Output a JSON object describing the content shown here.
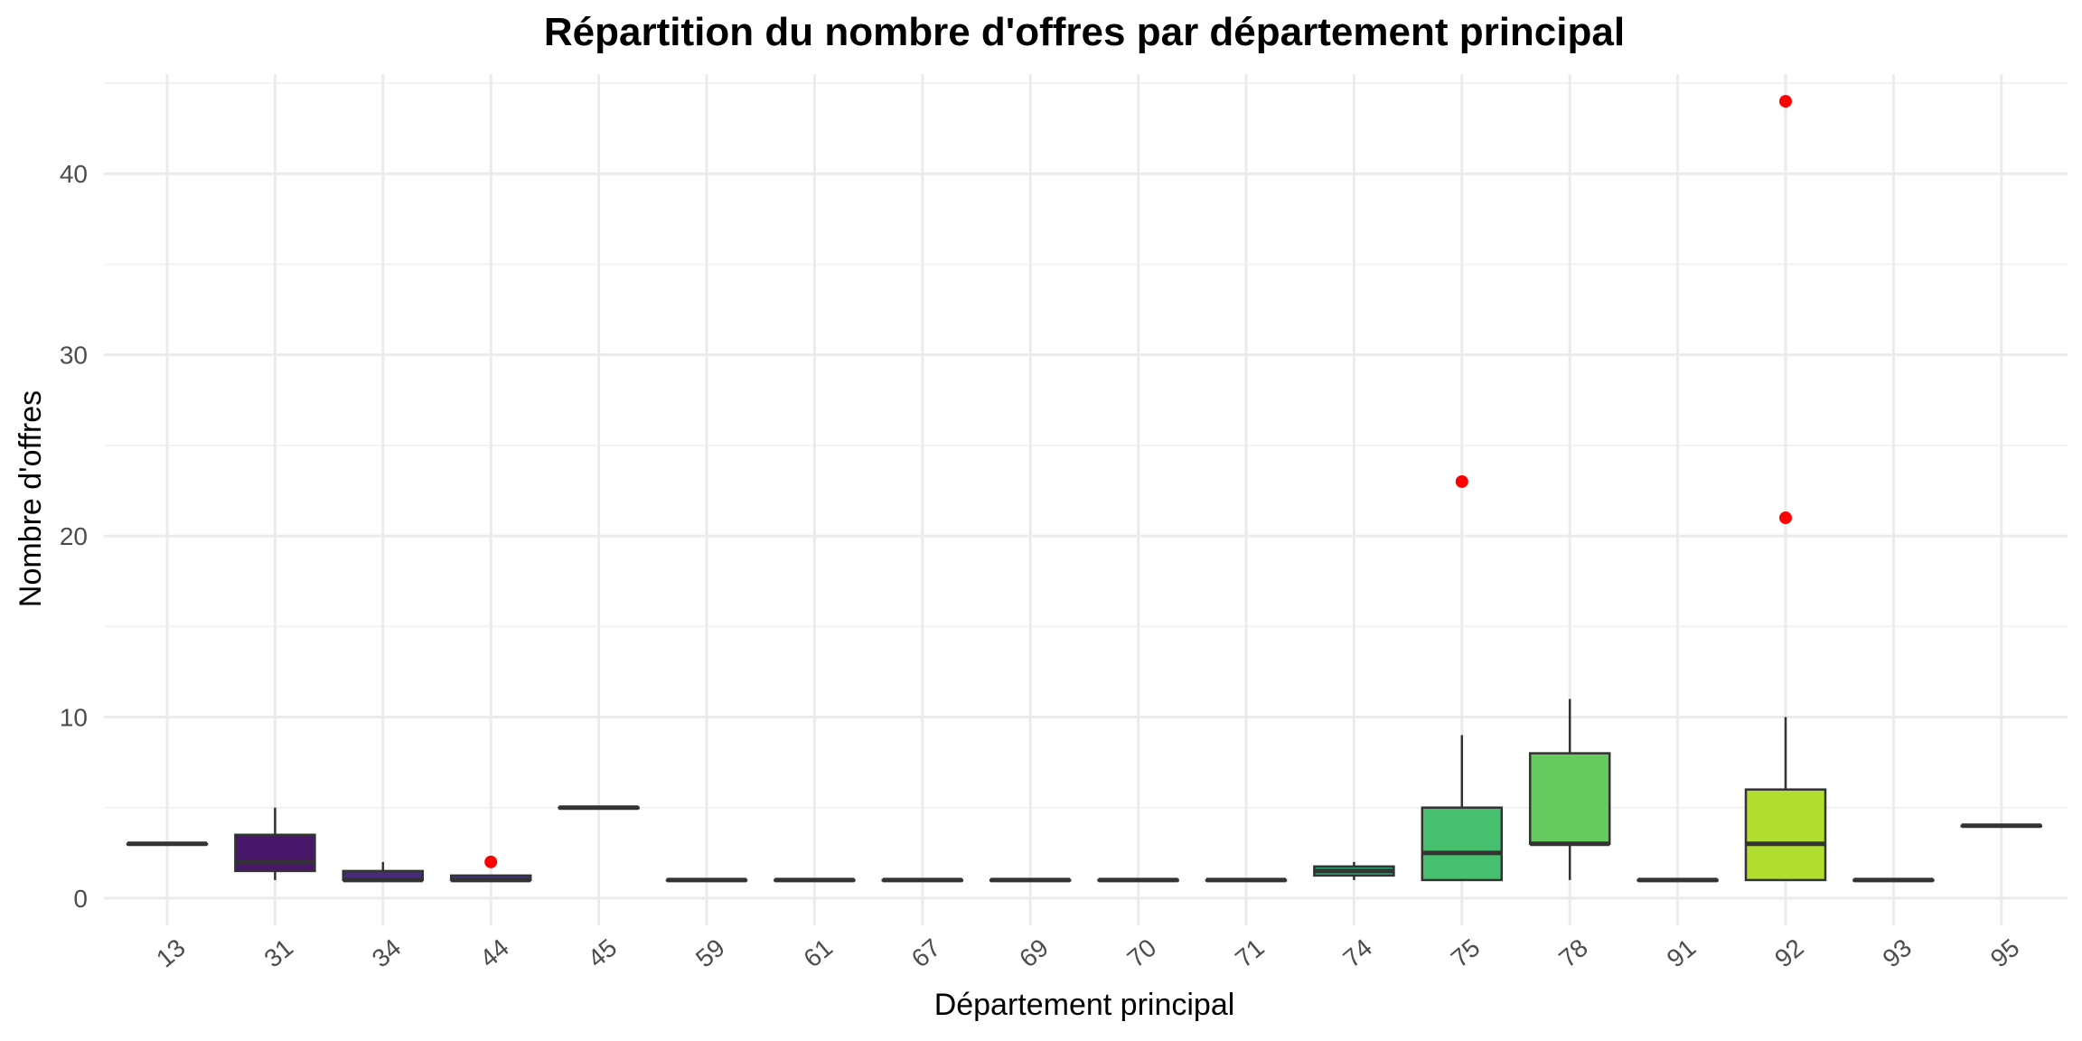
{
  "chart_data": {
    "type": "boxplot",
    "title": "Répartition du nombre d'offres par département principal",
    "xlabel": "Département principal",
    "ylabel": "Nombre d'offres",
    "ylim": [
      -1.5,
      45.5
    ],
    "yticks": [
      0,
      10,
      20,
      30,
      40
    ],
    "yticks_minor": [
      5,
      15,
      25,
      35,
      45
    ],
    "grid": true,
    "legend": "none",
    "outlier_color": "#ff0000",
    "categories": [
      "13",
      "31",
      "34",
      "44",
      "45",
      "59",
      "61",
      "67",
      "69",
      "70",
      "71",
      "74",
      "75",
      "78",
      "91",
      "92",
      "93",
      "95"
    ],
    "boxes": [
      {
        "category": "13",
        "min": 3,
        "q1": 3,
        "median": 3,
        "q3": 3,
        "max": 3,
        "outliers": [],
        "color": "#440154"
      },
      {
        "category": "31",
        "min": 1,
        "q1": 1.5,
        "median": 2,
        "q3": 3.5,
        "max": 5,
        "outliers": [],
        "color": "#481769"
      },
      {
        "category": "34",
        "min": 1,
        "q1": 1,
        "median": 1,
        "q3": 1.5,
        "max": 2,
        "outliers": [],
        "color": "#472A7A"
      },
      {
        "category": "44",
        "min": 1,
        "q1": 1,
        "median": 1,
        "q3": 1.25,
        "max": 1.25,
        "outliers": [
          2
        ],
        "color": "#433D84"
      },
      {
        "category": "45",
        "min": 5,
        "q1": 5,
        "median": 5,
        "q3": 5,
        "max": 5,
        "outliers": [],
        "color": "#3D4E8A"
      },
      {
        "category": "59",
        "min": 1,
        "q1": 1,
        "median": 1,
        "q3": 1,
        "max": 1,
        "outliers": [],
        "color": "#355E8D"
      },
      {
        "category": "61",
        "min": 1,
        "q1": 1,
        "median": 1,
        "q3": 1,
        "max": 1,
        "outliers": [],
        "color": "#2E6D8E"
      },
      {
        "category": "67",
        "min": 1,
        "q1": 1,
        "median": 1,
        "q3": 1,
        "max": 1,
        "outliers": [],
        "color": "#297B8E"
      },
      {
        "category": "69",
        "min": 1,
        "q1": 1,
        "median": 1,
        "q3": 1,
        "max": 1,
        "outliers": [],
        "color": "#23898E"
      },
      {
        "category": "70",
        "min": 1,
        "q1": 1,
        "median": 1,
        "q3": 1,
        "max": 1,
        "outliers": [],
        "color": "#1F978B"
      },
      {
        "category": "71",
        "min": 1,
        "q1": 1,
        "median": 1,
        "q3": 1,
        "max": 1,
        "outliers": [],
        "color": "#21A585"
      },
      {
        "category": "74",
        "min": 1,
        "q1": 1.25,
        "median": 1.5,
        "q3": 1.75,
        "max": 2,
        "outliers": [],
        "color": "#2EB37C"
      },
      {
        "category": "75",
        "min": 1,
        "q1": 1,
        "median": 2.5,
        "q3": 5,
        "max": 9,
        "outliers": [
          23
        ],
        "color": "#46C06F"
      },
      {
        "category": "78",
        "min": 1,
        "q1": 3,
        "median": 3,
        "q3": 8,
        "max": 11,
        "outliers": [],
        "color": "#65CB5E"
      },
      {
        "category": "91",
        "min": 1,
        "q1": 1,
        "median": 1,
        "q3": 1,
        "max": 1,
        "outliers": [],
        "color": "#89D548"
      },
      {
        "category": "92",
        "min": 1,
        "q1": 1,
        "median": 3,
        "q3": 6,
        "max": 10,
        "outliers": [
          21,
          44
        ],
        "color": "#B0DD2F"
      },
      {
        "category": "93",
        "min": 1,
        "q1": 1,
        "median": 1,
        "q3": 1,
        "max": 1,
        "outliers": [],
        "color": "#D8E219"
      },
      {
        "category": "95",
        "min": 4,
        "q1": 4,
        "median": 4,
        "q3": 4,
        "max": 4,
        "outliers": [],
        "color": "#FDE725"
      }
    ]
  }
}
